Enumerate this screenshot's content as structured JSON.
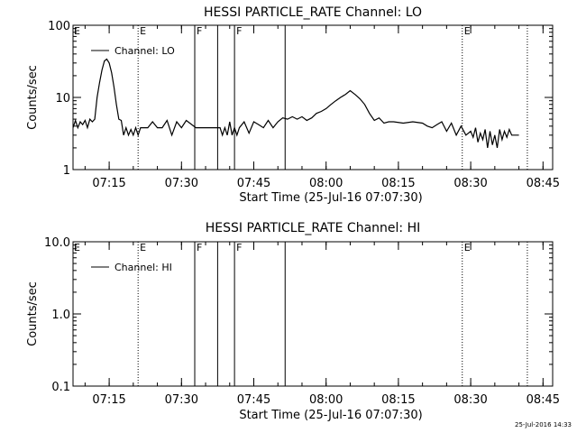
{
  "chart_data": [
    {
      "type": "line",
      "title": "HESSI PARTICLE_RATE Channel: LO",
      "xlabel": "Start Time (25-Jul-16 07:07:30)",
      "ylabel": "Counts/sec",
      "y_scale": "log",
      "ylim": [
        1,
        100
      ],
      "y_ticks": [
        {
          "v": 1,
          "label": "1"
        },
        {
          "v": 10,
          "label": "10"
        },
        {
          "v": 100,
          "label": "100"
        }
      ],
      "xlim": [
        "07:07:30",
        "08:47:00"
      ],
      "x_ticks": [
        "07:15",
        "07:30",
        "07:45",
        "08:00",
        "08:15",
        "08:30",
        "08:45"
      ],
      "legend": {
        "entry": "Channel: LO",
        "placement": "top-left"
      },
      "series": [
        {
          "name": "Channel: LO",
          "x": [
            "07:07:30",
            "07:08:00",
            "07:08:30",
            "07:09:00",
            "07:09:30",
            "07:10:00",
            "07:10:30",
            "07:11:00",
            "07:11:30",
            "07:12:00",
            "07:12:30",
            "07:13:00",
            "07:13:30",
            "07:14:00",
            "07:14:30",
            "07:15:00",
            "07:15:30",
            "07:16:00",
            "07:16:30",
            "07:17:00",
            "07:17:30",
            "07:18:00",
            "07:18:30",
            "07:19:00",
            "07:19:30",
            "07:20:00",
            "07:20:30",
            "07:21:00",
            "07:21:30",
            "07:22:00",
            "07:23:00",
            "07:24:00",
            "07:25:00",
            "07:26:00",
            "07:27:00",
            "07:28:00",
            "07:29:00",
            "07:30:00",
            "07:31:00",
            "07:33:00",
            "07:38:00",
            "07:38:30",
            "07:39:00",
            "07:39:30",
            "07:40:00",
            "07:40:30",
            "07:41:00",
            "07:41:30",
            "07:42:00",
            "07:43:00",
            "07:44:00",
            "07:45:00",
            "07:46:00",
            "07:47:00",
            "07:48:00",
            "07:49:00",
            "07:50:00",
            "07:51:00",
            "07:52:00",
            "07:53:00",
            "07:54:00",
            "07:55:00",
            "07:56:00",
            "07:57:00",
            "07:58:00",
            "07:59:00",
            "08:00:00",
            "08:01:00",
            "08:02:00",
            "08:03:00",
            "08:04:00",
            "08:05:00",
            "08:06:00",
            "08:07:00",
            "08:08:00",
            "08:09:00",
            "08:10:00",
            "08:11:00",
            "08:12:00",
            "08:13:00",
            "08:14:00",
            "08:16:00",
            "08:18:00",
            "08:20:00",
            "08:21:00",
            "08:22:00",
            "08:23:00",
            "08:24:00",
            "08:25:00",
            "08:26:00",
            "08:27:00",
            "08:28:00",
            "08:29:00",
            "08:30:00",
            "08:30:30",
            "08:31:00",
            "08:31:30",
            "08:32:00",
            "08:32:30",
            "08:33:00",
            "08:33:30",
            "08:34:00",
            "08:34:30",
            "08:35:00",
            "08:35:30",
            "08:36:00",
            "08:36:30",
            "08:37:00",
            "08:37:30",
            "08:38:00",
            "08:38:30",
            "08:39:00",
            "08:40:00"
          ],
          "y": [
            3.8,
            4.8,
            3.8,
            4.6,
            4.2,
            4.8,
            3.8,
            5.0,
            4.6,
            5.0,
            10,
            16,
            24,
            32,
            34,
            30,
            22,
            14,
            8,
            5,
            4.8,
            3.0,
            3.8,
            3.0,
            3.6,
            3.0,
            3.8,
            3.0,
            3.8,
            3.8,
            3.8,
            4.6,
            3.8,
            3.8,
            4.8,
            3.0,
            4.6,
            3.8,
            4.8,
            3.8,
            3.8,
            3.0,
            3.8,
            3.0,
            4.6,
            3.0,
            3.8,
            3.0,
            3.8,
            4.6,
            3.2,
            4.6,
            4.2,
            3.8,
            4.8,
            3.8,
            4.6,
            5.2,
            5.0,
            5.4,
            5.0,
            5.4,
            4.8,
            5.2,
            6.0,
            6.4,
            7.0,
            8.0,
            9.0,
            10,
            11,
            12.4,
            11,
            9.6,
            8,
            6,
            4.8,
            5.2,
            4.4,
            4.6,
            4.6,
            4.4,
            4.6,
            4.4,
            4.0,
            3.8,
            4.2,
            4.6,
            3.4,
            4.4,
            3.0,
            4.0,
            3.0,
            3.4,
            2.8,
            3.8,
            2.4,
            3.2,
            2.6,
            3.6,
            2.0,
            3.4,
            2.2,
            3.0,
            2.0,
            3.6,
            2.6,
            3.4,
            2.8,
            3.6,
            3.0,
            3.0,
            3.0
          ]
        }
      ],
      "events": [
        {
          "time": "07:21:00",
          "style": "dotted",
          "label": "E"
        },
        {
          "time": "07:32:45",
          "style": "solid",
          "label": "F"
        },
        {
          "time": "07:37:30",
          "style": "solid",
          "label": ""
        },
        {
          "time": "07:41:00",
          "style": "solid",
          "label": "F"
        },
        {
          "time": "07:51:30",
          "style": "solid",
          "label": ""
        },
        {
          "time": "08:28:15",
          "style": "dotted",
          "label": "E"
        },
        {
          "time": "08:41:45",
          "style": "dotted",
          "label": ""
        }
      ],
      "corner_label": "E"
    },
    {
      "type": "line",
      "title": "HESSI PARTICLE_RATE Channel: HI",
      "xlabel": "Start Time (25-Jul-16 07:07:30)",
      "ylabel": "Counts/sec",
      "y_scale": "log",
      "ylim": [
        0.1,
        10
      ],
      "y_ticks": [
        {
          "v": 0.1,
          "label": "0.1"
        },
        {
          "v": 1,
          "label": "1.0"
        },
        {
          "v": 10,
          "label": "10.0"
        }
      ],
      "xlim": [
        "07:07:30",
        "08:47:00"
      ],
      "x_ticks": [
        "07:15",
        "07:30",
        "07:45",
        "08:00",
        "08:15",
        "08:30",
        "08:45"
      ],
      "legend": {
        "entry": "Channel: HI",
        "placement": "top-left"
      },
      "series": [
        {
          "name": "Channel: HI",
          "x": [],
          "y": []
        }
      ],
      "events": [
        {
          "time": "07:21:00",
          "style": "dotted",
          "label": "E"
        },
        {
          "time": "07:32:45",
          "style": "solid",
          "label": "F"
        },
        {
          "time": "07:37:30",
          "style": "solid",
          "label": ""
        },
        {
          "time": "07:41:00",
          "style": "solid",
          "label": "F"
        },
        {
          "time": "07:51:30",
          "style": "solid",
          "label": ""
        },
        {
          "time": "08:28:15",
          "style": "dotted",
          "label": "E"
        },
        {
          "time": "08:41:45",
          "style": "dotted",
          "label": ""
        }
      ],
      "corner_label": "E"
    }
  ],
  "footer": {
    "timestamp": "25-Jul-2016 14:33"
  }
}
